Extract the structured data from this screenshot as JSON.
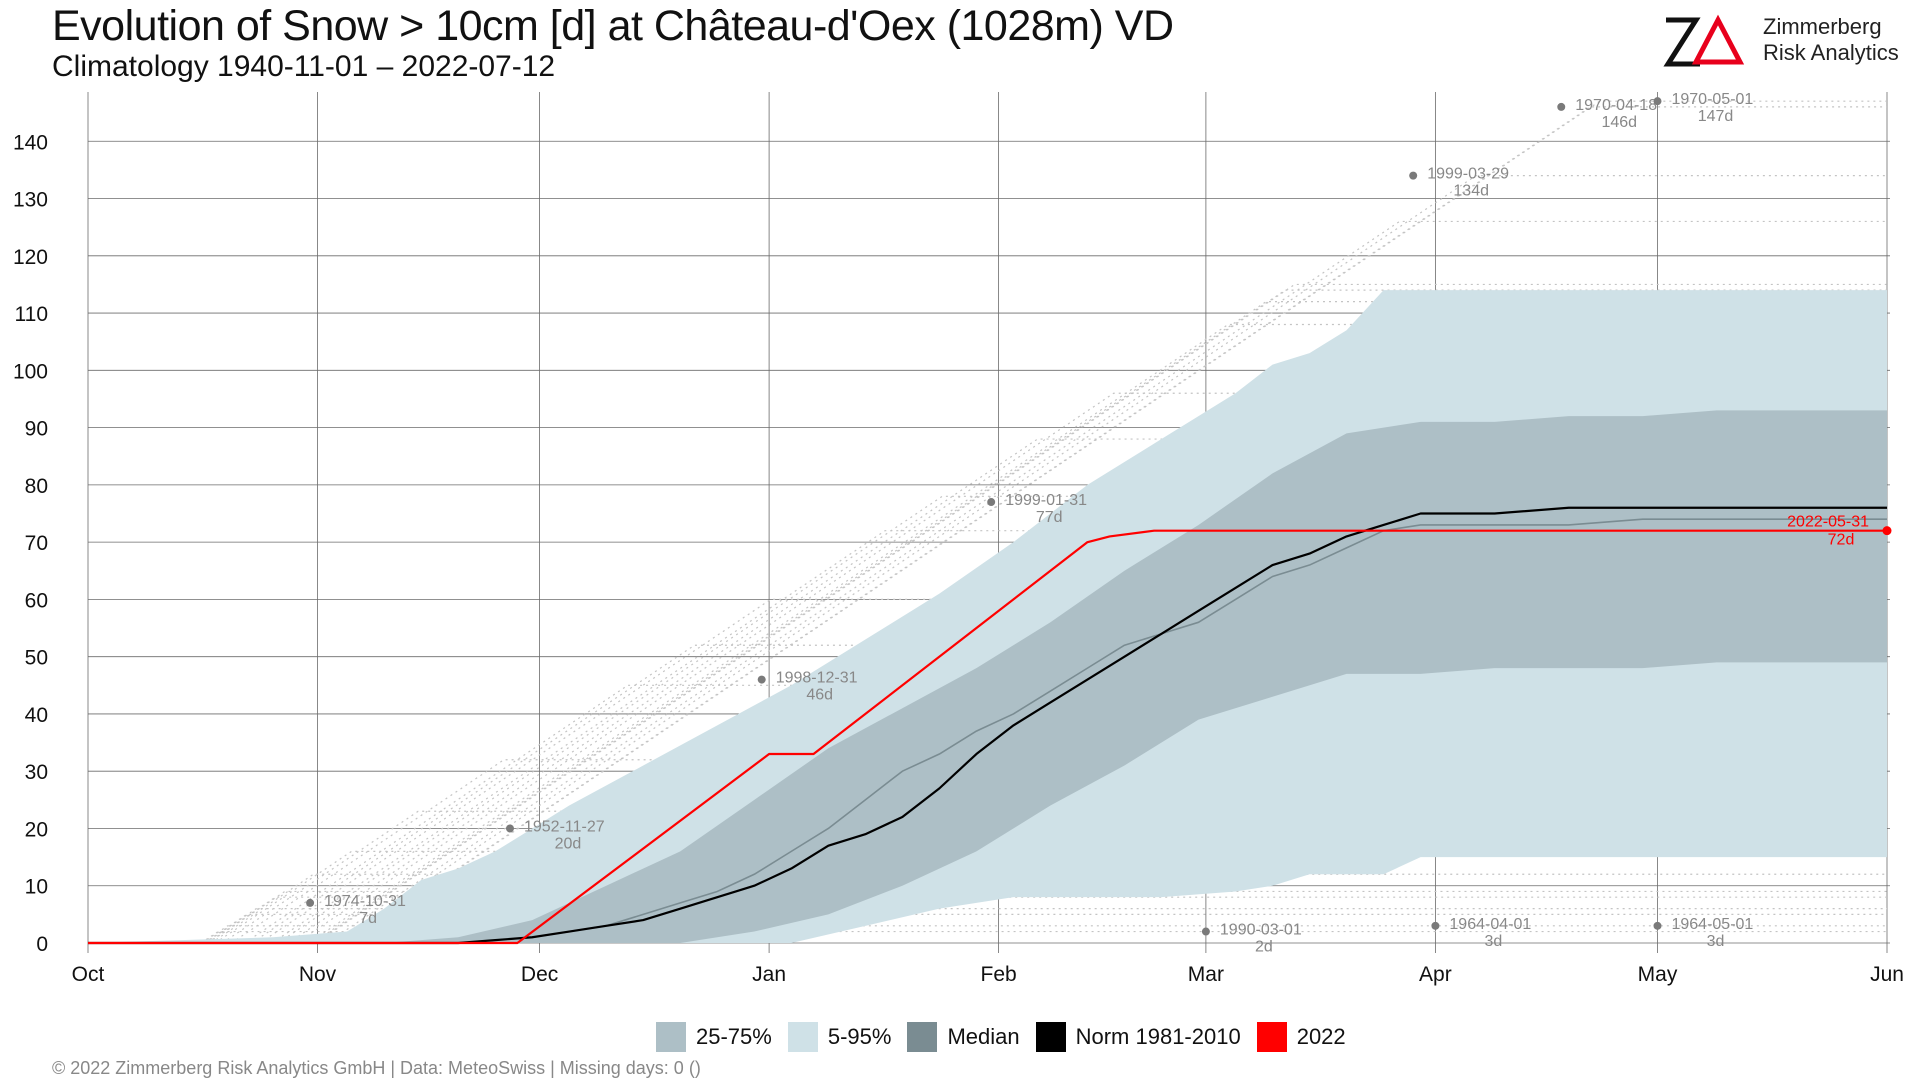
{
  "header": {
    "title": "Evolution of Snow > 10cm [d] at Château-d'Oex (1028m) VD",
    "subtitle": "Climatology 1940-11-01 – 2022-07-12"
  },
  "logo": {
    "mark": "ZΔ",
    "line1": "Zimmerberg",
    "line2": "Risk Analytics",
    "accent_color": "#e8001c"
  },
  "footer": {
    "text": "©  2022 Zimmerberg Risk Analytics GmbH | Data: MeteoSwiss | Missing days: 0 ()"
  },
  "legend": [
    {
      "label": "25-75%",
      "color": "#adbfc6"
    },
    {
      "label": "5-95%",
      "color": "#cfe1e7"
    },
    {
      "label": "Median",
      "color": "#7a8c92"
    },
    {
      "label": "Norm 1981-2010",
      "color": "#000000"
    },
    {
      "label": "2022",
      "color": "#ff0000"
    }
  ],
  "chart_data": {
    "type": "line",
    "x_unit": "days since Oct 1",
    "xlim": [
      0,
      243
    ],
    "ylim": [
      0,
      150
    ],
    "y_ticks": [
      0,
      10,
      20,
      30,
      40,
      50,
      60,
      70,
      80,
      90,
      100,
      110,
      120,
      130,
      140
    ],
    "x_ticks": [
      {
        "label": "Oct",
        "value": 0
      },
      {
        "label": "Nov",
        "value": 31
      },
      {
        "label": "Dec",
        "value": 61
      },
      {
        "label": "Jan",
        "value": 92
      },
      {
        "label": "Feb",
        "value": 123
      },
      {
        "label": "Mar",
        "value": 151
      },
      {
        "label": "Apr",
        "value": 182
      },
      {
        "label": "May",
        "value": 212
      },
      {
        "label": "Jun",
        "value": 243
      }
    ],
    "grid": true,
    "bands": [
      {
        "name": "5-95%",
        "color": "#cfe1e7",
        "x": [
          0,
          25,
          35,
          40,
          45,
          50,
          55,
          60,
          65,
          75,
          85,
          95,
          105,
          115,
          125,
          135,
          145,
          155,
          160,
          165,
          170,
          175,
          180,
          190,
          200,
          210,
          220,
          230,
          243
        ],
        "upper": [
          0,
          1,
          2,
          6,
          11,
          13,
          16,
          20,
          24,
          31,
          38,
          45,
          53,
          61,
          70,
          80,
          88,
          96,
          101,
          103,
          107,
          114,
          114,
          114,
          114,
          114,
          114,
          114,
          114
        ],
        "lower": [
          0,
          0,
          0,
          0,
          0,
          0,
          0,
          0,
          0,
          0,
          0,
          0,
          3,
          6,
          8,
          8,
          8,
          9,
          10,
          12,
          12,
          12,
          15,
          15,
          15,
          15,
          15,
          15,
          15
        ]
      },
      {
        "name": "25-75%",
        "color": "#adbfc6",
        "x": [
          0,
          40,
          50,
          60,
          70,
          80,
          90,
          100,
          110,
          120,
          130,
          140,
          150,
          160,
          170,
          180,
          190,
          200,
          210,
          220,
          230,
          243
        ],
        "upper": [
          0,
          0,
          1,
          4,
          10,
          16,
          25,
          34,
          41,
          48,
          56,
          65,
          73,
          82,
          89,
          91,
          91,
          92,
          92,
          93,
          93,
          93
        ],
        "lower": [
          0,
          0,
          0,
          0,
          0,
          0,
          2,
          5,
          10,
          16,
          24,
          31,
          39,
          43,
          47,
          47,
          48,
          48,
          48,
          49,
          49,
          49
        ]
      }
    ],
    "series": [
      {
        "name": "Median",
        "color": "#7a8c92",
        "x": [
          0,
          50,
          55,
          60,
          65,
          70,
          75,
          80,
          85,
          90,
          95,
          100,
          105,
          110,
          115,
          120,
          125,
          130,
          135,
          140,
          145,
          150,
          155,
          160,
          165,
          170,
          175,
          180,
          190,
          200,
          210,
          220,
          230,
          243
        ],
        "y": [
          0,
          0,
          0.5,
          1,
          2,
          3,
          5,
          7,
          9,
          12,
          16,
          20,
          25,
          30,
          33,
          37,
          40,
          44,
          48,
          52,
          54,
          56,
          60,
          64,
          66,
          69,
          72,
          73,
          73,
          73,
          74,
          74,
          74,
          74
        ]
      },
      {
        "name": "Norm 1981-2010",
        "color": "#000000",
        "x": [
          0,
          50,
          55,
          60,
          65,
          70,
          75,
          80,
          85,
          90,
          95,
          100,
          105,
          110,
          115,
          120,
          125,
          130,
          135,
          140,
          145,
          150,
          155,
          160,
          165,
          170,
          175,
          180,
          190,
          200,
          210,
          220,
          230,
          243
        ],
        "y": [
          0,
          0,
          0.5,
          1,
          2,
          3,
          4,
          6,
          8,
          10,
          13,
          17,
          19,
          22,
          27,
          33,
          38,
          42,
          46,
          50,
          54,
          58,
          62,
          66,
          68,
          71,
          73,
          75,
          75,
          76,
          76,
          76,
          76,
          76
        ]
      },
      {
        "name": "2022",
        "color": "#ff0000",
        "x": [
          0,
          58,
          92,
          98,
          135,
          138,
          144,
          243
        ],
        "y": [
          0,
          0,
          33,
          33,
          70,
          71,
          72,
          72
        ]
      }
    ],
    "annotations": [
      {
        "date": "1974-10-31",
        "value_label": "7d",
        "x": 30,
        "y": 7
      },
      {
        "date": "1952-11-27",
        "value_label": "20d",
        "x": 57,
        "y": 20
      },
      {
        "date": "1998-12-31",
        "value_label": "46d",
        "x": 91,
        "y": 46
      },
      {
        "date": "1999-01-31",
        "value_label": "77d",
        "x": 122,
        "y": 77
      },
      {
        "date": "1990-03-01",
        "value_label": "2d",
        "x": 151,
        "y": 2
      },
      {
        "date": "1999-03-29",
        "value_label": "134d",
        "x": 179,
        "y": 134
      },
      {
        "date": "1964-04-01",
        "value_label": "3d",
        "x": 182,
        "y": 3
      },
      {
        "date": "1970-04-18",
        "value_label": "146d",
        "x": 199,
        "y": 146
      },
      {
        "date": "1970-05-01",
        "value_label": "147d",
        "x": 212,
        "y": 147
      },
      {
        "date": "1964-05-01",
        "value_label": "3d",
        "x": 212,
        "y": 3
      }
    ],
    "highlight": {
      "date": "2022-05-31",
      "value_label": "72d",
      "x": 243,
      "y": 72,
      "color": "#ff0000"
    },
    "historical_traces_y": [
      147,
      146,
      134,
      126,
      115,
      114,
      112,
      108,
      96,
      88,
      78,
      72,
      60,
      52,
      45,
      32,
      23,
      16,
      12,
      9,
      8,
      6,
      5,
      3,
      2
    ]
  }
}
